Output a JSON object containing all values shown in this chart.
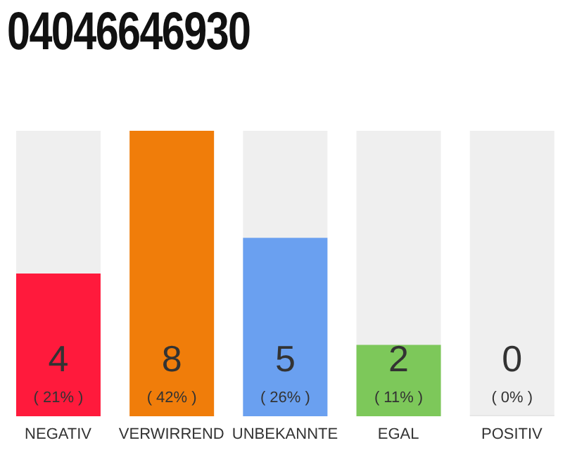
{
  "chart_data": {
    "type": "bar",
    "title": "04046646930",
    "categories": [
      "NEGATIV",
      "VERWIRREND",
      "UNBEKANNTE",
      "EGAL",
      "POSITIV"
    ],
    "values": [
      4,
      8,
      5,
      2,
      0
    ],
    "colors": [
      "#ff1a3c",
      "#f07d0a",
      "#6aa0f0",
      "#7dc85a",
      "#e6e6e6"
    ],
    "value_labels": [
      "4\n( 21% )",
      "8\n( 42% )",
      "5\n( 26% )",
      "2\n( 11% )",
      "0\n( 0% )"
    ],
    "ylim": [
      0,
      8
    ]
  }
}
